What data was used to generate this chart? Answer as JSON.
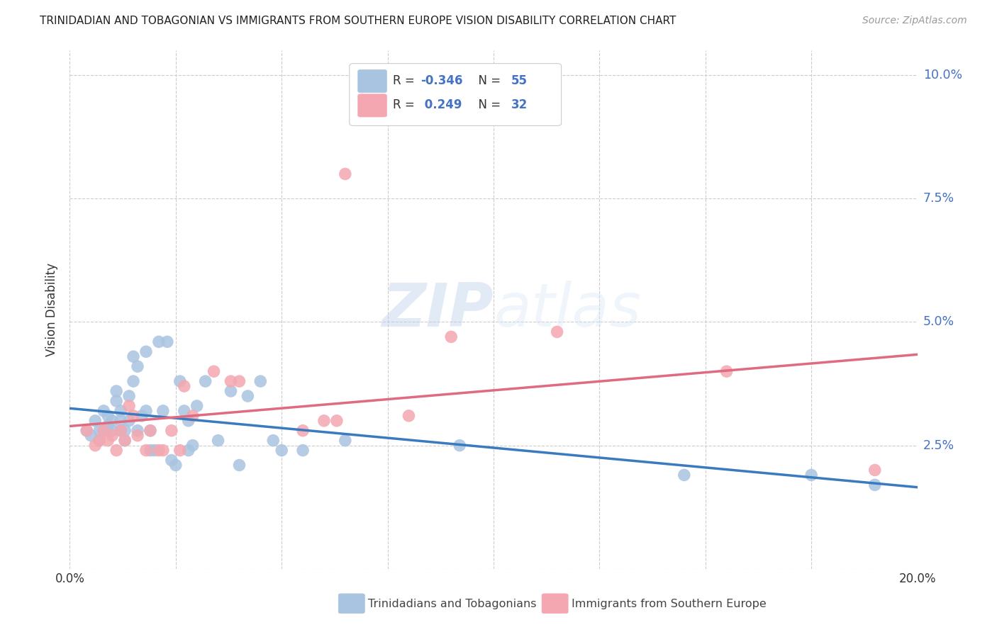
{
  "title": "TRINIDADIAN AND TOBAGONIAN VS IMMIGRANTS FROM SOUTHERN EUROPE VISION DISABILITY CORRELATION CHART",
  "source": "Source: ZipAtlas.com",
  "ylabel": "Vision Disability",
  "xlim": [
    0.0,
    0.2
  ],
  "ylim": [
    0.0,
    0.105
  ],
  "yticks": [
    0.0,
    0.025,
    0.05,
    0.075,
    0.1
  ],
  "ytick_labels": [
    "",
    "2.5%",
    "5.0%",
    "7.5%",
    "10.0%"
  ],
  "xticks": [
    0.0,
    0.025,
    0.05,
    0.075,
    0.1,
    0.125,
    0.15,
    0.175,
    0.2
  ],
  "series1_color": "#a8c4e0",
  "series2_color": "#f4a7b0",
  "line1_color": "#3a7abf",
  "line2_color": "#e06b80",
  "legend_text_color": "#4472c4",
  "legend_label1_display": "Trinidadians and Tobagonians",
  "legend_label2_display": "Immigrants from Southern Europe",
  "background_color": "#ffffff",
  "series1_x": [
    0.004,
    0.005,
    0.006,
    0.007,
    0.007,
    0.008,
    0.008,
    0.009,
    0.009,
    0.01,
    0.01,
    0.011,
    0.011,
    0.012,
    0.012,
    0.012,
    0.013,
    0.013,
    0.014,
    0.014,
    0.015,
    0.015,
    0.016,
    0.016,
    0.017,
    0.018,
    0.018,
    0.019,
    0.019,
    0.02,
    0.021,
    0.022,
    0.023,
    0.024,
    0.025,
    0.026,
    0.027,
    0.028,
    0.028,
    0.029,
    0.03,
    0.032,
    0.035,
    0.038,
    0.04,
    0.042,
    0.045,
    0.048,
    0.05,
    0.055,
    0.065,
    0.092,
    0.145,
    0.175,
    0.19
  ],
  "series1_y": [
    0.028,
    0.027,
    0.03,
    0.026,
    0.028,
    0.032,
    0.028,
    0.031,
    0.029,
    0.03,
    0.028,
    0.034,
    0.036,
    0.03,
    0.032,
    0.028,
    0.028,
    0.026,
    0.035,
    0.03,
    0.043,
    0.038,
    0.041,
    0.028,
    0.031,
    0.044,
    0.032,
    0.028,
    0.024,
    0.024,
    0.046,
    0.032,
    0.046,
    0.022,
    0.021,
    0.038,
    0.032,
    0.024,
    0.03,
    0.025,
    0.033,
    0.038,
    0.026,
    0.036,
    0.021,
    0.035,
    0.038,
    0.026,
    0.024,
    0.024,
    0.026,
    0.025,
    0.019,
    0.019,
    0.017
  ],
  "series2_x": [
    0.004,
    0.006,
    0.007,
    0.008,
    0.009,
    0.01,
    0.011,
    0.012,
    0.013,
    0.014,
    0.015,
    0.016,
    0.018,
    0.019,
    0.021,
    0.022,
    0.024,
    0.026,
    0.027,
    0.029,
    0.034,
    0.038,
    0.04,
    0.055,
    0.06,
    0.063,
    0.065,
    0.08,
    0.09,
    0.115,
    0.155,
    0.19
  ],
  "series2_y": [
    0.028,
    0.025,
    0.026,
    0.028,
    0.026,
    0.027,
    0.024,
    0.028,
    0.026,
    0.033,
    0.031,
    0.027,
    0.024,
    0.028,
    0.024,
    0.024,
    0.028,
    0.024,
    0.037,
    0.031,
    0.04,
    0.038,
    0.038,
    0.028,
    0.03,
    0.03,
    0.08,
    0.031,
    0.047,
    0.048,
    0.04,
    0.02
  ]
}
